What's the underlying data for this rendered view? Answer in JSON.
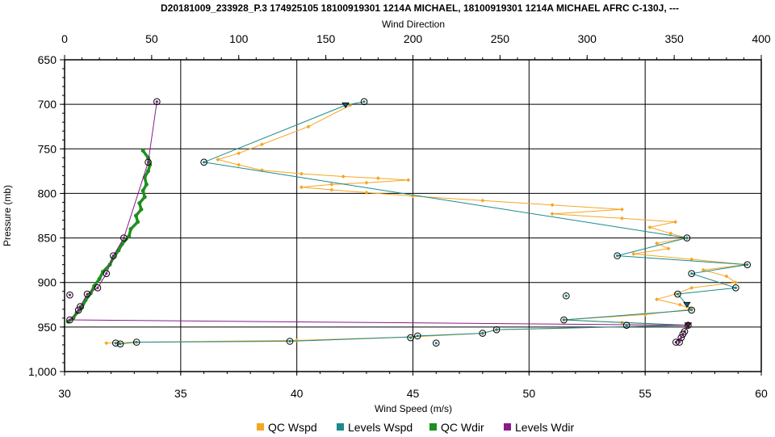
{
  "chart_data": {
    "type": "line",
    "title": "D20181009_233928_P.3 174925105 18100919301 1214A MICHAEL, 18100919301 1214A MICHAEL AFRC C-130J, ---",
    "xlabel": "Wind Speed (m/s)",
    "x2label": "Wind Direction",
    "ylabel": "Pressure (mb)",
    "xlim": [
      30,
      60
    ],
    "x2lim": [
      0,
      400
    ],
    "ylim": [
      1000,
      650
    ],
    "y_inverted": true,
    "grid": true,
    "legend_position": "bottom",
    "x_ticks": [
      "30",
      "35",
      "40",
      "45",
      "50",
      "55",
      "60"
    ],
    "x2_ticks": [
      "0",
      "50",
      "100",
      "150",
      "200",
      "250",
      "300",
      "350",
      "400"
    ],
    "y_ticks": [
      "650",
      "700",
      "750",
      "800",
      "850",
      "900",
      "950",
      "1,000"
    ],
    "series": [
      {
        "name": "QC Wspd",
        "axis": "bottom",
        "color": "#f5a623",
        "points": [
          [
            42.3,
            701
          ],
          [
            40.5,
            725
          ],
          [
            38.5,
            745
          ],
          [
            37.5,
            755
          ],
          [
            36.6,
            762
          ],
          [
            37.5,
            768
          ],
          [
            38.5,
            774
          ],
          [
            40.2,
            778
          ],
          [
            42.0,
            781
          ],
          [
            43.5,
            783
          ],
          [
            44.8,
            785
          ],
          [
            43.0,
            788
          ],
          [
            41.5,
            790
          ],
          [
            40.2,
            793
          ],
          [
            41.5,
            796
          ],
          [
            43.0,
            799
          ],
          [
            45.0,
            803
          ],
          [
            48.0,
            808
          ],
          [
            51.0,
            813
          ],
          [
            54.0,
            818
          ],
          [
            51.0,
            823
          ],
          [
            54.0,
            828
          ],
          [
            56.3,
            832
          ],
          [
            55.2,
            838
          ],
          [
            56.1,
            845
          ],
          [
            56.8,
            850
          ],
          [
            55.5,
            856
          ],
          [
            56.0,
            862
          ],
          [
            54.5,
            868
          ],
          [
            57.0,
            874
          ],
          [
            59.3,
            880
          ],
          [
            57.5,
            886
          ],
          [
            58.5,
            893
          ],
          [
            58.9,
            900
          ],
          [
            57.0,
            906
          ],
          [
            56.3,
            913
          ],
          [
            55.5,
            919
          ],
          [
            56.5,
            925
          ],
          [
            57.0,
            930
          ],
          [
            55.0,
            936
          ],
          [
            51.5,
            942
          ],
          [
            54.0,
            945
          ],
          [
            56.8,
            948
          ],
          [
            48.6,
            953
          ],
          [
            48.0,
            957
          ],
          [
            45.0,
            961
          ],
          [
            40.0,
            965
          ],
          [
            33.0,
            967
          ],
          [
            31.8,
            968
          ]
        ]
      },
      {
        "name": "Levels Wspd",
        "axis": "bottom",
        "color": "#1a8a8a",
        "points": [
          [
            42.9,
            697
          ],
          [
            42.1,
            701
          ],
          [
            36.0,
            765
          ],
          [
            56.8,
            850
          ],
          [
            53.8,
            870
          ],
          [
            59.4,
            880
          ],
          [
            57.0,
            890
          ],
          [
            58.9,
            906
          ],
          [
            56.4,
            913
          ],
          [
            56.8,
            925
          ],
          [
            57.0,
            931
          ],
          [
            51.5,
            942
          ],
          [
            56.8,
            948
          ],
          [
            48.6,
            953
          ],
          [
            48.0,
            957
          ],
          [
            45.2,
            960
          ],
          [
            45.0,
            961
          ],
          [
            39.7,
            966
          ],
          [
            33.1,
            967
          ],
          [
            32.4,
            969
          ]
        ]
      },
      {
        "name": "QC Wdir",
        "axis": "top",
        "color": "#1f8f1f",
        "points": [
          [
            45,
            752
          ],
          [
            48,
            760
          ],
          [
            49,
            768
          ],
          [
            48,
            775
          ],
          [
            46,
            782
          ],
          [
            47,
            790
          ],
          [
            45,
            797
          ],
          [
            46,
            804
          ],
          [
            43,
            811
          ],
          [
            44,
            818
          ],
          [
            41,
            825
          ],
          [
            42,
            832
          ],
          [
            38,
            840
          ],
          [
            37,
            848
          ],
          [
            33,
            857
          ],
          [
            31,
            864
          ],
          [
            28,
            872
          ],
          [
            26,
            880
          ],
          [
            22,
            888
          ],
          [
            20,
            896
          ],
          [
            17,
            904
          ],
          [
            15,
            912
          ],
          [
            12,
            920
          ],
          [
            10,
            928
          ],
          [
            7,
            934
          ],
          [
            5,
            940
          ],
          [
            2,
            944
          ]
        ]
      },
      {
        "name": "Levels Wdir",
        "axis": "top",
        "color": "#8b1a8b",
        "points": [
          [
            53,
            697
          ],
          [
            48,
            765
          ],
          [
            34,
            850
          ],
          [
            28,
            870
          ],
          [
            24,
            890
          ],
          [
            19,
            906
          ],
          [
            13,
            913
          ],
          [
            9,
            927
          ],
          [
            8,
            931
          ],
          [
            3,
            942
          ],
          [
            358,
            948
          ],
          [
            356,
            955
          ],
          [
            355,
            958
          ],
          [
            354,
            962
          ],
          [
            352,
            966
          ]
        ]
      }
    ],
    "markers": {
      "circles_speed": [
        [
          42.9,
          697
        ],
        [
          36.0,
          765
        ],
        [
          56.8,
          850
        ],
        [
          53.8,
          870
        ],
        [
          59.4,
          880
        ],
        [
          57.0,
          890
        ],
        [
          58.9,
          906
        ],
        [
          56.4,
          913
        ],
        [
          51.6,
          915
        ],
        [
          57.0,
          931
        ],
        [
          51.5,
          942
        ],
        [
          54.2,
          948
        ],
        [
          48.6,
          953
        ],
        [
          48.0,
          957
        ],
        [
          45.2,
          960
        ],
        [
          44.9,
          962
        ],
        [
          46.0,
          968
        ],
        [
          39.7,
          966
        ],
        [
          33.1,
          967
        ],
        [
          32.2,
          968
        ],
        [
          32.4,
          969
        ]
      ],
      "circles_dir": [
        [
          53,
          697
        ],
        [
          48,
          765
        ],
        [
          34,
          850
        ],
        [
          28,
          870
        ],
        [
          24,
          890
        ],
        [
          19,
          906
        ],
        [
          3,
          914
        ],
        [
          13,
          913
        ],
        [
          9,
          927
        ],
        [
          8,
          931
        ],
        [
          3,
          942
        ],
        [
          358,
          948
        ],
        [
          356,
          955
        ],
        [
          355,
          958
        ],
        [
          354,
          962
        ],
        [
          351,
          967
        ],
        [
          353,
          967
        ]
      ],
      "triangles_speed": [
        [
          42.1,
          701
        ],
        [
          56.8,
          925
        ]
      ],
      "triangles_dir": [
        [
          358,
          948
        ]
      ]
    }
  }
}
